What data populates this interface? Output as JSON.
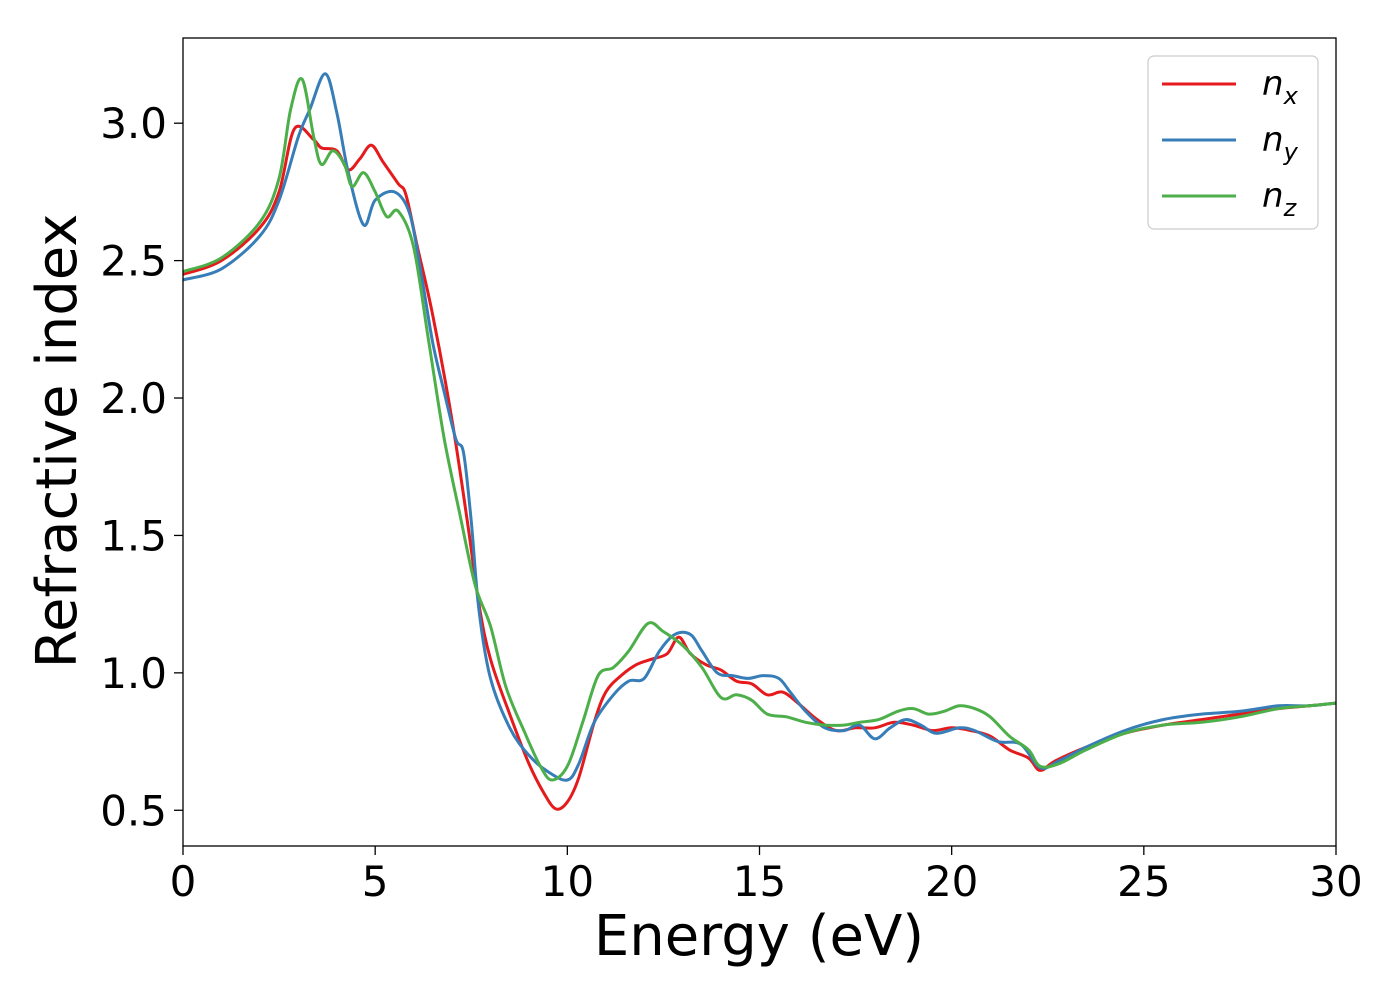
{
  "chart_data": {
    "type": "line",
    "xlabel": "Energy (eV)",
    "ylabel": "Refractive index",
    "xlim": [
      0,
      30
    ],
    "ylim": [
      0.37,
      3.31
    ],
    "x_ticks": [
      "0",
      "5",
      "10",
      "15",
      "20",
      "25",
      "30"
    ],
    "y_ticks": [
      "0.5",
      "1.0",
      "1.5",
      "2.0",
      "2.5",
      "3.0"
    ],
    "grid": false,
    "legend_position": "top-right",
    "series": [
      {
        "name": "n",
        "subscript": "x",
        "color": "#e41a1c",
        "points": [
          [
            0,
            2.45
          ],
          [
            1,
            2.5
          ],
          [
            2,
            2.62
          ],
          [
            2.5,
            2.75
          ],
          [
            2.9,
            2.98
          ],
          [
            3.4,
            2.94
          ],
          [
            3.6,
            2.91
          ],
          [
            4,
            2.9
          ],
          [
            4.3,
            2.83
          ],
          [
            4.6,
            2.87
          ],
          [
            4.9,
            2.92
          ],
          [
            5.2,
            2.86
          ],
          [
            5.6,
            2.78
          ],
          [
            5.8,
            2.74
          ],
          [
            6.1,
            2.55
          ],
          [
            6.5,
            2.3
          ],
          [
            7,
            1.92
          ],
          [
            7.4,
            1.55
          ],
          [
            7.7,
            1.25
          ],
          [
            8,
            1.05
          ],
          [
            8.5,
            0.85
          ],
          [
            9,
            0.67
          ],
          [
            9.4,
            0.56
          ],
          [
            9.7,
            0.505
          ],
          [
            10,
            0.53
          ],
          [
            10.3,
            0.62
          ],
          [
            10.7,
            0.82
          ],
          [
            11,
            0.93
          ],
          [
            11.4,
            0.99
          ],
          [
            11.8,
            1.03
          ],
          [
            12.2,
            1.05
          ],
          [
            12.6,
            1.07
          ],
          [
            12.9,
            1.13
          ],
          [
            13.2,
            1.07
          ],
          [
            13.6,
            1.03
          ],
          [
            14,
            1.01
          ],
          [
            14.4,
            0.97
          ],
          [
            14.8,
            0.96
          ],
          [
            15.2,
            0.92
          ],
          [
            15.6,
            0.93
          ],
          [
            16,
            0.89
          ],
          [
            16.5,
            0.83
          ],
          [
            17,
            0.79
          ],
          [
            17.5,
            0.8
          ],
          [
            18,
            0.8
          ],
          [
            18.5,
            0.82
          ],
          [
            19,
            0.81
          ],
          [
            19.5,
            0.79
          ],
          [
            20,
            0.8
          ],
          [
            20.5,
            0.79
          ],
          [
            21,
            0.77
          ],
          [
            21.5,
            0.72
          ],
          [
            22,
            0.69
          ],
          [
            22.3,
            0.645
          ],
          [
            22.7,
            0.68
          ],
          [
            23.5,
            0.73
          ],
          [
            24.5,
            0.78
          ],
          [
            25.5,
            0.81
          ],
          [
            26.5,
            0.83
          ],
          [
            27.5,
            0.85
          ],
          [
            28.5,
            0.87
          ],
          [
            29.3,
            0.88
          ],
          [
            30,
            0.89
          ]
        ]
      },
      {
        "name": "n",
        "subscript": "y",
        "color": "#377eb8",
        "points": [
          [
            0,
            2.43
          ],
          [
            1,
            2.47
          ],
          [
            2,
            2.59
          ],
          [
            2.5,
            2.72
          ],
          [
            3,
            2.95
          ],
          [
            3.3,
            3.05
          ],
          [
            3.7,
            3.18
          ],
          [
            4,
            3.04
          ],
          [
            4.3,
            2.82
          ],
          [
            4.7,
            2.63
          ],
          [
            5,
            2.72
          ],
          [
            5.5,
            2.75
          ],
          [
            5.9,
            2.67
          ],
          [
            6.2,
            2.45
          ],
          [
            6.5,
            2.2
          ],
          [
            6.8,
            2.02
          ],
          [
            7.1,
            1.85
          ],
          [
            7.3,
            1.8
          ],
          [
            7.5,
            1.55
          ],
          [
            7.7,
            1.23
          ],
          [
            8,
            0.98
          ],
          [
            8.5,
            0.8
          ],
          [
            9,
            0.7
          ],
          [
            9.5,
            0.64
          ],
          [
            10,
            0.61
          ],
          [
            10.3,
            0.67
          ],
          [
            10.7,
            0.82
          ],
          [
            11.2,
            0.92
          ],
          [
            11.6,
            0.97
          ],
          [
            12,
            0.98
          ],
          [
            12.4,
            1.08
          ],
          [
            12.8,
            1.14
          ],
          [
            13.2,
            1.14
          ],
          [
            13.5,
            1.08
          ],
          [
            13.9,
            1.0
          ],
          [
            14.3,
            0.99
          ],
          [
            14.7,
            0.98
          ],
          [
            15.1,
            0.99
          ],
          [
            15.5,
            0.98
          ],
          [
            15.8,
            0.93
          ],
          [
            16.2,
            0.86
          ],
          [
            16.7,
            0.8
          ],
          [
            17.2,
            0.79
          ],
          [
            17.6,
            0.81
          ],
          [
            18,
            0.76
          ],
          [
            18.4,
            0.8
          ],
          [
            18.8,
            0.83
          ],
          [
            19.2,
            0.81
          ],
          [
            19.6,
            0.78
          ],
          [
            20.2,
            0.8
          ],
          [
            20.6,
            0.79
          ],
          [
            21.2,
            0.75
          ],
          [
            21.8,
            0.74
          ],
          [
            22.3,
            0.655
          ],
          [
            22.8,
            0.68
          ],
          [
            23.5,
            0.73
          ],
          [
            24.5,
            0.79
          ],
          [
            25.5,
            0.83
          ],
          [
            26.5,
            0.85
          ],
          [
            27.5,
            0.86
          ],
          [
            28.5,
            0.88
          ],
          [
            29.3,
            0.88
          ],
          [
            30,
            0.89
          ]
        ]
      },
      {
        "name": "n",
        "subscript": "z",
        "color": "#4daf4a",
        "points": [
          [
            0,
            2.46
          ],
          [
            1,
            2.51
          ],
          [
            2,
            2.64
          ],
          [
            2.5,
            2.8
          ],
          [
            2.8,
            3.05
          ],
          [
            3.1,
            3.16
          ],
          [
            3.4,
            2.95
          ],
          [
            3.6,
            2.85
          ],
          [
            3.9,
            2.9
          ],
          [
            4.2,
            2.85
          ],
          [
            4.4,
            2.77
          ],
          [
            4.7,
            2.82
          ],
          [
            5,
            2.75
          ],
          [
            5.3,
            2.66
          ],
          [
            5.6,
            2.68
          ],
          [
            6,
            2.55
          ],
          [
            6.4,
            2.2
          ],
          [
            6.8,
            1.85
          ],
          [
            7.2,
            1.58
          ],
          [
            7.6,
            1.32
          ],
          [
            8,
            1.17
          ],
          [
            8.4,
            0.95
          ],
          [
            8.9,
            0.78
          ],
          [
            9.3,
            0.66
          ],
          [
            9.6,
            0.61
          ],
          [
            10,
            0.66
          ],
          [
            10.4,
            0.82
          ],
          [
            10.8,
            0.99
          ],
          [
            11.2,
            1.02
          ],
          [
            11.6,
            1.08
          ],
          [
            12.1,
            1.18
          ],
          [
            12.5,
            1.15
          ],
          [
            13,
            1.1
          ],
          [
            13.5,
            1.02
          ],
          [
            14,
            0.91
          ],
          [
            14.4,
            0.92
          ],
          [
            14.8,
            0.9
          ],
          [
            15.2,
            0.85
          ],
          [
            15.7,
            0.84
          ],
          [
            16.2,
            0.82
          ],
          [
            16.7,
            0.81
          ],
          [
            17.2,
            0.81
          ],
          [
            17.6,
            0.82
          ],
          [
            18.1,
            0.83
          ],
          [
            18.6,
            0.86
          ],
          [
            19,
            0.87
          ],
          [
            19.4,
            0.85
          ],
          [
            19.8,
            0.86
          ],
          [
            20.2,
            0.88
          ],
          [
            20.6,
            0.87
          ],
          [
            21,
            0.84
          ],
          [
            21.5,
            0.77
          ],
          [
            22,
            0.72
          ],
          [
            22.3,
            0.66
          ],
          [
            22.8,
            0.67
          ],
          [
            23.5,
            0.72
          ],
          [
            24.5,
            0.78
          ],
          [
            25.5,
            0.81
          ],
          [
            26.5,
            0.82
          ],
          [
            27.5,
            0.84
          ],
          [
            28.5,
            0.87
          ],
          [
            29.3,
            0.88
          ],
          [
            30,
            0.89
          ]
        ]
      }
    ]
  }
}
